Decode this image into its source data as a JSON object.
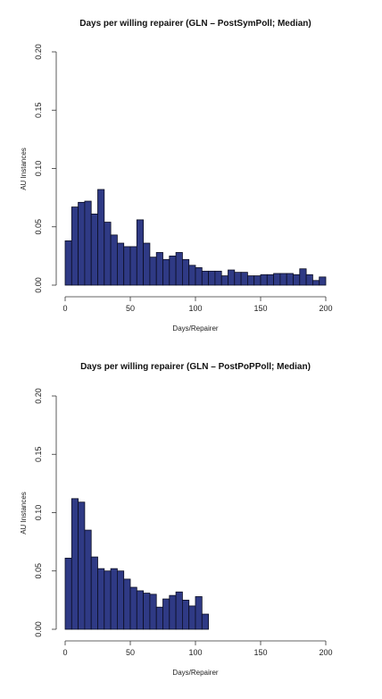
{
  "chart_data": [
    {
      "type": "bar",
      "title": "Days per willing repairer (GLN – PostSymPoll; Median)",
      "xlabel": "Days/Repairer",
      "ylabel": "AU Instances",
      "xlim": [
        0,
        200
      ],
      "ylim": [
        0,
        0.2
      ],
      "x_ticks": [
        "0",
        "50",
        "100",
        "150",
        "200"
      ],
      "y_ticks": [
        "0.00",
        "0.05",
        "0.10",
        "0.15",
        "0.20"
      ],
      "bin_width": 5,
      "bin_start": 0,
      "values": [
        0.038,
        0.067,
        0.071,
        0.072,
        0.061,
        0.082,
        0.054,
        0.043,
        0.036,
        0.033,
        0.033,
        0.056,
        0.036,
        0.024,
        0.028,
        0.022,
        0.025,
        0.028,
        0.022,
        0.017,
        0.015,
        0.012,
        0.012,
        0.012,
        0.008,
        0.013,
        0.011,
        0.011,
        0.008,
        0.008,
        0.009,
        0.009,
        0.01,
        0.01,
        0.01,
        0.009,
        0.014,
        0.009,
        0.004,
        0.007
      ],
      "grid": false,
      "bar_color": "#2f3a85"
    },
    {
      "type": "bar",
      "title": "Days per willing repairer (GLN – PostPoPPoll; Median)",
      "xlabel": "Days/Repairer",
      "ylabel": "AU Instances",
      "xlim": [
        0,
        200
      ],
      "ylim": [
        0,
        0.2
      ],
      "x_ticks": [
        "0",
        "50",
        "100",
        "150",
        "200"
      ],
      "y_ticks": [
        "0.00",
        "0.05",
        "0.10",
        "0.15",
        "0.20"
      ],
      "bin_width": 5,
      "bin_start": 0,
      "values": [
        0.061,
        0.112,
        0.109,
        0.085,
        0.062,
        0.052,
        0.05,
        0.052,
        0.05,
        0.043,
        0.036,
        0.033,
        0.031,
        0.03,
        0.019,
        0.026,
        0.029,
        0.032,
        0.025,
        0.02,
        0.028,
        0.013
      ],
      "grid": false,
      "bar_color": "#2f3a85"
    }
  ]
}
